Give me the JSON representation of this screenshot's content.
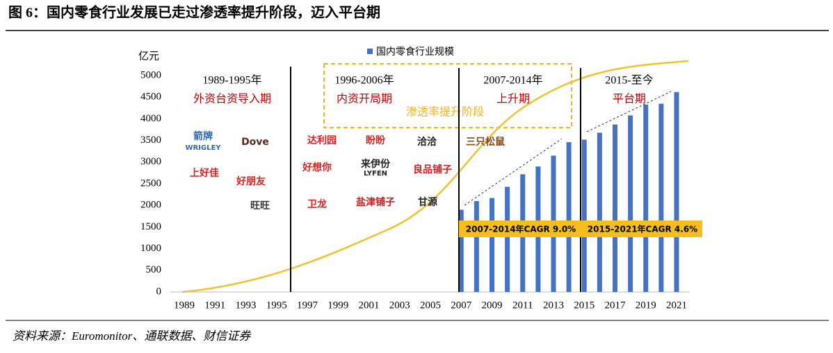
{
  "header": {
    "title": "图 6：国内零食行业发展已走过渗透率提升阶段，迈入平台期"
  },
  "chart_data": {
    "type": "bar",
    "y_unit": "亿元",
    "legend": "国内零食行业规模",
    "color": "#4472c4",
    "categories": [
      1989,
      null,
      1991,
      null,
      1993,
      null,
      1995,
      null,
      1997,
      null,
      1999,
      null,
      2001,
      null,
      2003,
      null,
      2005,
      null,
      2007,
      null,
      2009,
      null,
      2011,
      null,
      2013,
      null,
      2015,
      null,
      2017,
      null,
      2019,
      null,
      2021
    ],
    "values": [
      null,
      null,
      null,
      null,
      null,
      null,
      null,
      null,
      null,
      null,
      null,
      null,
      null,
      null,
      null,
      null,
      null,
      null,
      1900,
      2100,
      2170,
      2430,
      2720,
      2900,
      3150,
      3460,
      3520,
      3680,
      3870,
      4080,
      4330,
      4350,
      4620
    ],
    "ylim": [
      0,
      5000
    ],
    "yticks": [
      0,
      500,
      1000,
      1500,
      2000,
      2500,
      3000,
      3500,
      4000,
      4500,
      5000
    ],
    "periods": [
      {
        "years": "1989-1995年",
        "name": "外资台资导入期"
      },
      {
        "years": "1996-2006年",
        "name": "内资开局期"
      },
      {
        "years": "2007-2014年",
        "name": "上升期"
      },
      {
        "years": "2015-至今",
        "name": "平台期"
      }
    ],
    "stage_label": "渗透率提升阶段",
    "cagr": [
      "2007-2014年CAGR 9.0%",
      "2015-2021年CAGR 4.6%"
    ],
    "logos": [
      {
        "text": "箭牌",
        "color": "#2a6ab5"
      },
      {
        "text": "WRIGLEY",
        "color": "#2a6ab5"
      },
      {
        "text": "Dove",
        "color": "#5a2a1a"
      },
      {
        "text": "上好佳",
        "color": "#d22"
      },
      {
        "text": "好朋友",
        "color": "#d22"
      },
      {
        "text": "旺旺",
        "color": "#333"
      },
      {
        "text": "达利园",
        "color": "#d22"
      },
      {
        "text": "盼盼",
        "color": "#d22"
      },
      {
        "text": "洽洽",
        "color": "#222"
      },
      {
        "text": "三只松鼠",
        "color": "#7a4a1a"
      },
      {
        "text": "好想你",
        "color": "#d22"
      },
      {
        "text": "来伊份",
        "color": "#222"
      },
      {
        "text": "LYFEN",
        "color": "#222"
      },
      {
        "text": "良品铺子",
        "color": "#c22"
      },
      {
        "text": "卫龙",
        "color": "#d22"
      },
      {
        "text": "盐津铺子",
        "color": "#b22"
      },
      {
        "text": "甘源",
        "color": "#222"
      }
    ]
  },
  "footer": {
    "source": "资料来源：Euromonitor、通联数据、财信证券"
  }
}
